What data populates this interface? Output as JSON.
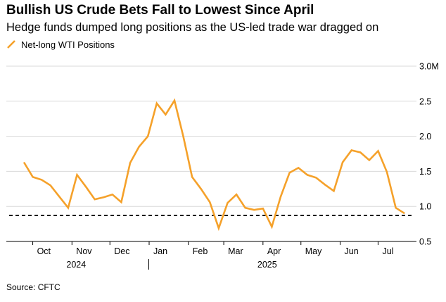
{
  "title": "Bullish US Crude Bets Fall to Lowest Since April",
  "subtitle": "Hedge funds dumped long positions as the US-led trade war dragged on",
  "source": "Source: CFTC",
  "colors": {
    "line": "#f5a12a",
    "grid": "#d9d9d9",
    "reference": "#000000"
  },
  "chart_data": {
    "type": "line",
    "x_tick_labels": [
      "Oct",
      "Nov",
      "Dec",
      "Jan",
      "Feb",
      "Mar",
      "Apr",
      "May",
      "Jun",
      "Jul"
    ],
    "year_labels": [
      "2024",
      "2025"
    ],
    "y_tick_labels": [
      "3.0M",
      "2.5",
      "2.0",
      "1.5",
      "1.0",
      "0.5"
    ],
    "y_ticks": [
      3.0,
      2.5,
      2.0,
      1.5,
      1.0,
      0.5
    ],
    "ylim": [
      0.5,
      3.0
    ],
    "grid": true,
    "legend_position": "top-left",
    "reference_line": {
      "value": 0.87,
      "style": "dashed"
    },
    "series": [
      {
        "name": "Net-long WTI Positions",
        "x": [
          "2024-09-24",
          "2024-10-01",
          "2024-10-08",
          "2024-10-15",
          "2024-10-22",
          "2024-10-29",
          "2024-11-05",
          "2024-11-12",
          "2024-11-19",
          "2024-11-26",
          "2024-12-03",
          "2024-12-10",
          "2024-12-17",
          "2024-12-24",
          "2024-12-31",
          "2025-01-07",
          "2025-01-14",
          "2025-01-21",
          "2025-01-28",
          "2025-02-04",
          "2025-02-11",
          "2025-02-18",
          "2025-02-25",
          "2025-03-04",
          "2025-03-11",
          "2025-03-18",
          "2025-03-25",
          "2025-04-01",
          "2025-04-08",
          "2025-04-15",
          "2025-04-22",
          "2025-04-29",
          "2025-05-06",
          "2025-05-13",
          "2025-05-20",
          "2025-05-27",
          "2025-06-03",
          "2025-06-10",
          "2025-06-17",
          "2025-06-24",
          "2025-07-01",
          "2025-07-08",
          "2025-07-15",
          "2025-07-22"
        ],
        "values": [
          1.63,
          1.42,
          1.38,
          1.3,
          1.14,
          0.98,
          1.45,
          1.28,
          1.1,
          1.13,
          1.17,
          1.06,
          1.62,
          1.85,
          2.0,
          2.47,
          2.31,
          2.51,
          2.0,
          1.42,
          1.25,
          1.06,
          0.69,
          1.05,
          1.17,
          0.98,
          0.95,
          0.97,
          0.71,
          1.14,
          1.48,
          1.55,
          1.45,
          1.41,
          1.31,
          1.22,
          1.63,
          1.8,
          1.77,
          1.66,
          1.79,
          1.49,
          0.98,
          0.9
        ]
      }
    ]
  }
}
